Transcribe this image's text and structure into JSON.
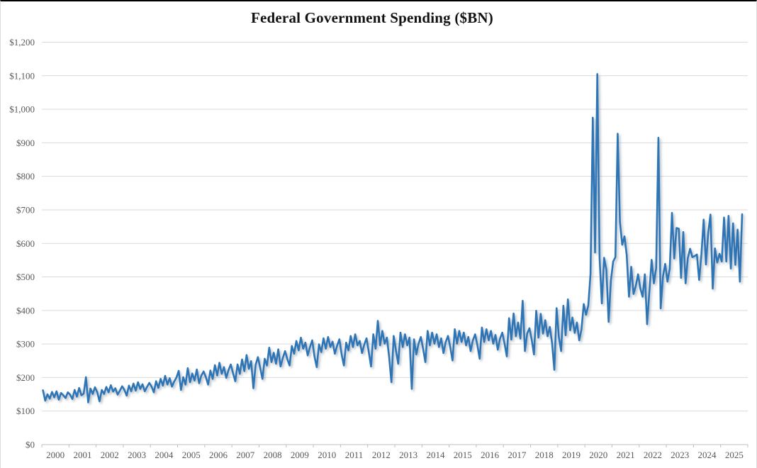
{
  "chart": {
    "title": "Federal Government Spending ($BN)"
  },
  "style": {
    "line_color": "#2E75B6",
    "shadow_color": "#8696A6",
    "grid_color": "#D9D9D9",
    "axis_line_color": "#BFBFBF",
    "axis_label_color": "#595959",
    "title_color": "#121212",
    "background": "#FFFFFF"
  },
  "chart_data": {
    "type": "line",
    "title": "Federal Government Spending ($BN)",
    "xlabel": "",
    "ylabel": "",
    "frequency": "monthly",
    "x_start": "2000-01",
    "x_end": "2025-10",
    "ylim": [
      0,
      1200
    ],
    "y_tick_step": 100,
    "grid": "horizontal-only",
    "legend": "none",
    "x_tick_labels": [
      "2000",
      "2001",
      "2002",
      "2003",
      "2004",
      "2005",
      "2006",
      "2007",
      "2008",
      "2009",
      "2010",
      "2011",
      "2012",
      "2013",
      "2014",
      "2015",
      "2016",
      "2017",
      "2018",
      "2019",
      "2020",
      "2021",
      "2022",
      "2023",
      "2024",
      "2025"
    ],
    "y_tick_labels": [
      "$0",
      "$100",
      "$200",
      "$300",
      "$400",
      "$500",
      "$600",
      "$700",
      "$800",
      "$900",
      "$1,000",
      "$1,100",
      "$1,200"
    ],
    "series": [
      {
        "name": "Federal Government Spending ($BN)",
        "color": "#2E75B6",
        "values": [
          162,
          131,
          150,
          137,
          157,
          141,
          159,
          134,
          154,
          147,
          139,
          156,
          149,
          136,
          163,
          143,
          169,
          147,
          152,
          201,
          126,
          167,
          151,
          171,
          156,
          129,
          163,
          151,
          172,
          156,
          177,
          158,
          168,
          149,
          161,
          174,
          163,
          146,
          176,
          159,
          182,
          161,
          186,
          166,
          180,
          159,
          172,
          184,
          173,
          156,
          189,
          169,
          196,
          176,
          205,
          179,
          198,
          173,
          188,
          200,
          220,
          163,
          201,
          179,
          228,
          186,
          212,
          191,
          224,
          183,
          206,
          218,
          201,
          179,
          221,
          196,
          237,
          206,
          244,
          211,
          231,
          199,
          222,
          239,
          213,
          189,
          239,
          211,
          254,
          219,
          267,
          226,
          249,
          168,
          238,
          261,
          229,
          196,
          256,
          236,
          289,
          246,
          274,
          241,
          284,
          233,
          258,
          279,
          255,
          236,
          294,
          271,
          309,
          281,
          319,
          286,
          304,
          266,
          291,
          311,
          263,
          231,
          299,
          276,
          317,
          286,
          321,
          291,
          307,
          271,
          295,
          314,
          269,
          236,
          304,
          281,
          324,
          291,
          329,
          296,
          309,
          273,
          298,
          317,
          276,
          233,
          329,
          286,
          369,
          296,
          339,
          301,
          319,
          261,
          186,
          324,
          281,
          241,
          334,
          291,
          329,
          296,
          319,
          166,
          314,
          269,
          301,
          321,
          286,
          246,
          339,
          296,
          334,
          301,
          329,
          291,
          317,
          273,
          306,
          324,
          291,
          251,
          344,
          301,
          339,
          306,
          334,
          296,
          321,
          279,
          311,
          329,
          296,
          256,
          349,
          306,
          344,
          311,
          339,
          301,
          327,
          283,
          316,
          334,
          301,
          263,
          377,
          313,
          391,
          323,
          364,
          316,
          429,
          279,
          331,
          347,
          313,
          269,
          399,
          319,
          390,
          331,
          371,
          323,
          351,
          303,
          223,
          407,
          321,
          279,
          414,
          326,
          433,
          341,
          379,
          333,
          364,
          311,
          343,
          419,
          387,
          414,
          509,
          975,
          573,
          1105,
          556,
          421,
          557,
          521,
          366,
          489,
          546,
          559,
          927,
          664,
          596,
          621,
          565,
          441,
          530,
          449,
          473,
          508,
          466,
          441,
          508,
          359,
          455,
          551,
          481,
          526,
          915,
          406,
          501,
          539,
          486,
          524,
          691,
          555,
          646,
          644,
          497,
          634,
          481,
          556,
          584,
          559,
          562,
          567,
          491,
          567,
          671,
          537,
          631,
          686,
          465,
          585,
          543,
          569,
          546,
          677,
          546,
          682,
          525,
          660,
          536,
          641,
          486,
          687
        ]
      }
    ]
  }
}
